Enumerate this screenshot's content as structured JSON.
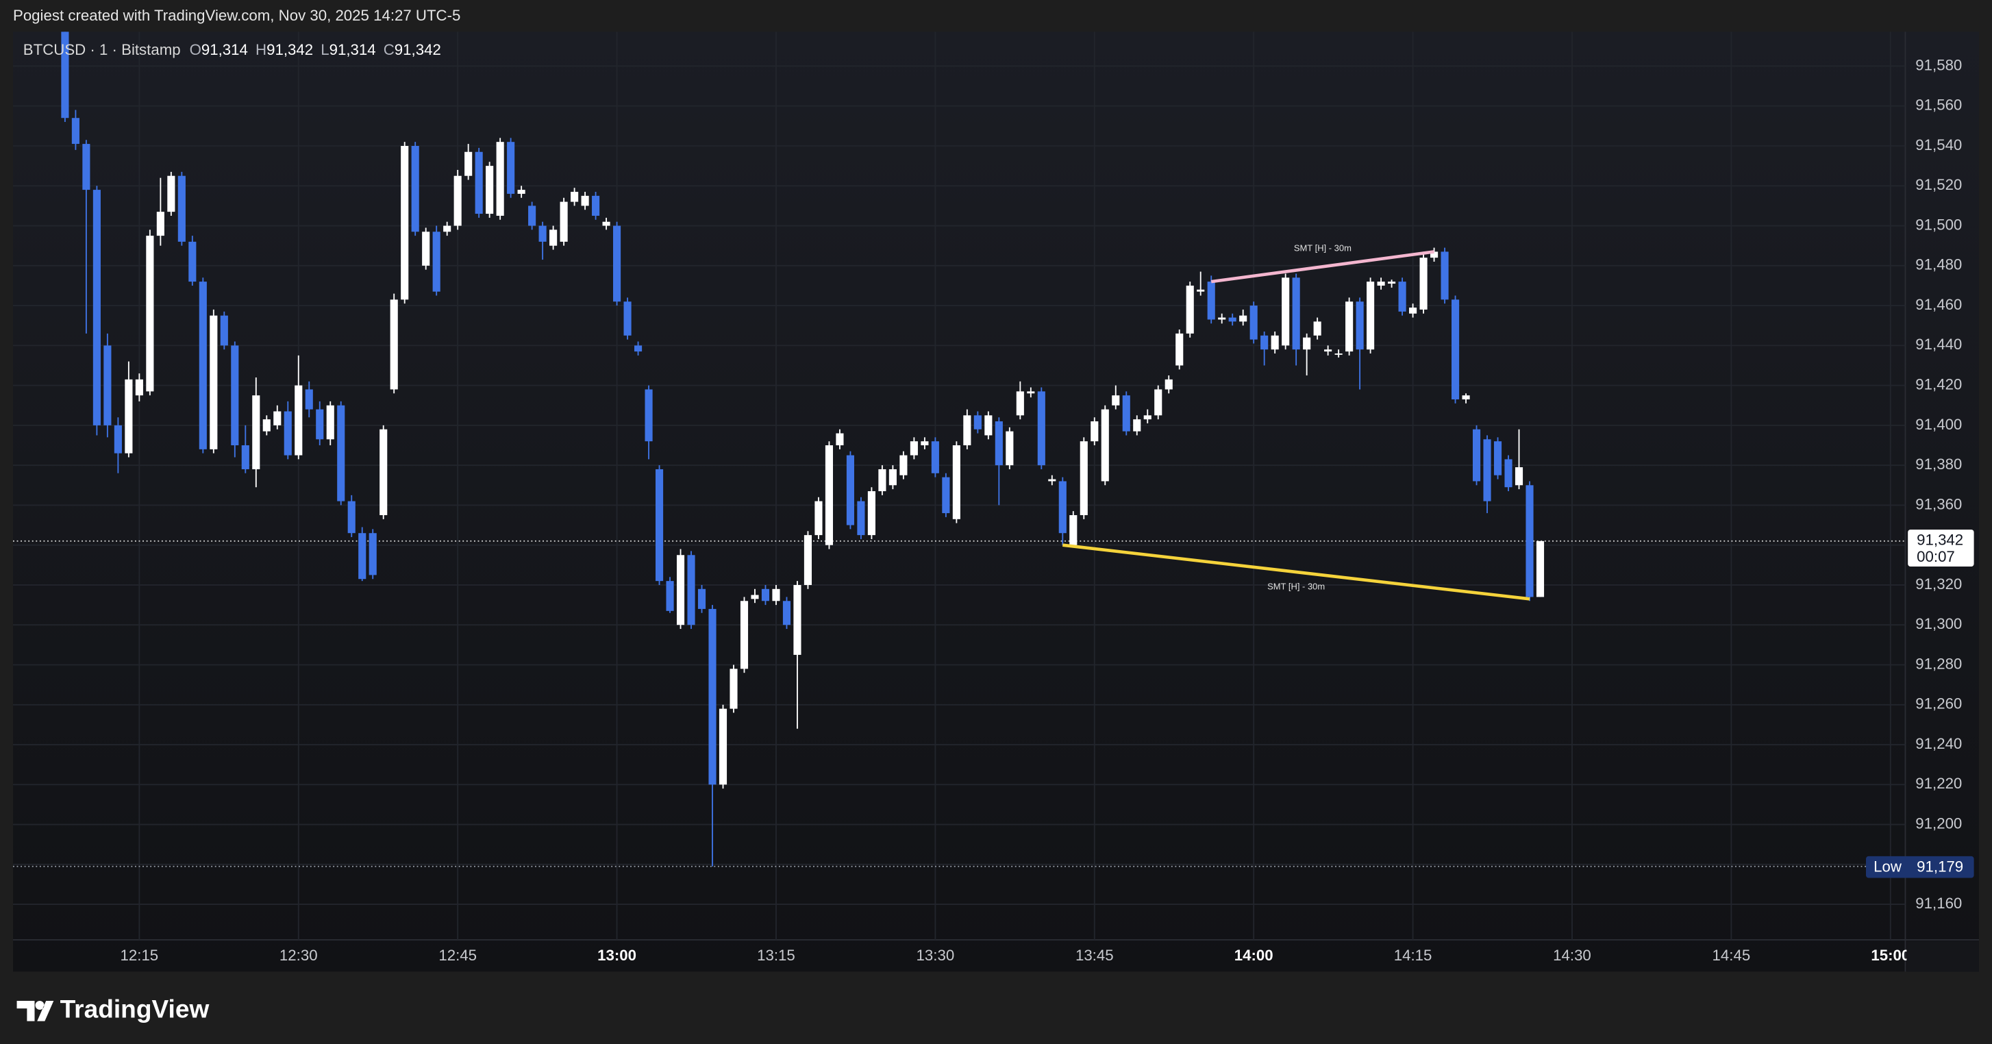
{
  "header": {
    "created": "Pogiest created with TradingView.com, Nov 30, 2025 14:27 UTC-5"
  },
  "footer": {
    "brand": "TradingView"
  },
  "chart_data": {
    "type": "candlestick",
    "symbol": "BTCUSD · 1 · Bitstamp",
    "legend_ohlc": [
      {
        "key": "O",
        "value": 91314,
        "label": "91,314"
      },
      {
        "key": "H",
        "value": 91342,
        "label": "91,342"
      },
      {
        "key": "L",
        "value": 91314,
        "label": "91,314"
      },
      {
        "key": "C",
        "value": 91342,
        "label": "91,342"
      }
    ],
    "up_color": "#ffffff",
    "down_color": "#3f74e6",
    "grid": true,
    "xlim": [
      723.1,
      901.4
    ],
    "ylim": [
      91142.2,
      91597.2
    ],
    "xticks": [
      {
        "value": 735,
        "label": "12:15"
      },
      {
        "value": 750,
        "label": "12:30"
      },
      {
        "value": 765,
        "label": "12:45"
      },
      {
        "value": 780,
        "label": "13:00",
        "bold": true
      },
      {
        "value": 795,
        "label": "13:15"
      },
      {
        "value": 810,
        "label": "13:30"
      },
      {
        "value": 825,
        "label": "13:45"
      },
      {
        "value": 840,
        "label": "14:00",
        "bold": true
      },
      {
        "value": 855,
        "label": "14:15"
      },
      {
        "value": 870,
        "label": "14:30"
      },
      {
        "value": 885,
        "label": "14:45"
      },
      {
        "value": 900,
        "label": "15:00",
        "bold": true
      }
    ],
    "yticks": [
      {
        "value": 91160,
        "label": "91,160"
      },
      {
        "value": 91180,
        "label": "91,180"
      },
      {
        "value": 91200,
        "label": "91,200"
      },
      {
        "value": 91220,
        "label": "91,220"
      },
      {
        "value": 91240,
        "label": "91,240"
      },
      {
        "value": 91260,
        "label": "91,260"
      },
      {
        "value": 91280,
        "label": "91,280"
      },
      {
        "value": 91300,
        "label": "91,300"
      },
      {
        "value": 91320,
        "label": "91,320"
      },
      {
        "value": 91340,
        "label": "91,340"
      },
      {
        "value": 91360,
        "label": "91,360"
      },
      {
        "value": 91380,
        "label": "91,380"
      },
      {
        "value": 91400,
        "label": "91,400"
      },
      {
        "value": 91420,
        "label": "91,420"
      },
      {
        "value": 91440,
        "label": "91,440"
      },
      {
        "value": 91460,
        "label": "91,460"
      },
      {
        "value": 91480,
        "label": "91,480"
      },
      {
        "value": 91500,
        "label": "91,500"
      },
      {
        "value": 91520,
        "label": "91,520"
      },
      {
        "value": 91540,
        "label": "91,540"
      },
      {
        "value": 91560,
        "label": "91,560"
      },
      {
        "value": 91580,
        "label": "91,580"
      }
    ],
    "last_price": {
      "value": 91342,
      "label": "91,342",
      "countdown": "00:07"
    },
    "low_marker": {
      "text": "Low",
      "value": 91179,
      "label": "91,179"
    },
    "annotations": [
      {
        "text": "SMT [H] - 30m",
        "color": "#f4b6cf",
        "from": [
          836,
          91472
        ],
        "to": [
          857,
          91487
        ],
        "label_side": "above"
      },
      {
        "text": "SMT [H] - 30m",
        "color": "#f5d33b",
        "from": [
          822,
          91340
        ],
        "to": [
          866,
          91313
        ],
        "label_side": "below"
      }
    ],
    "x": [
      728,
      729,
      730,
      731,
      732,
      733,
      734,
      735,
      736,
      737,
      738,
      739,
      740,
      741,
      742,
      743,
      744,
      745,
      746,
      747,
      748,
      749,
      750,
      751,
      752,
      753,
      754,
      755,
      756,
      757,
      758,
      759,
      760,
      761,
      762,
      763,
      764,
      765,
      766,
      767,
      768,
      769,
      770,
      771,
      772,
      773,
      774,
      775,
      776,
      777,
      778,
      779,
      780,
      781,
      782,
      783,
      784,
      785,
      786,
      787,
      788,
      789,
      790,
      791,
      792,
      793,
      794,
      795,
      796,
      797,
      798,
      799,
      800,
      801,
      802,
      803,
      804,
      805,
      806,
      807,
      808,
      809,
      810,
      811,
      812,
      813,
      814,
      815,
      816,
      817,
      818,
      819,
      820,
      821,
      822,
      823,
      824,
      825,
      826,
      827,
      828,
      829,
      830,
      831,
      832,
      833,
      834,
      835,
      836,
      837,
      838,
      839,
      840,
      841,
      842,
      843,
      844,
      845,
      846,
      847,
      848,
      849,
      850,
      851,
      852,
      853,
      854,
      855,
      856,
      857,
      858,
      859,
      860,
      861,
      862,
      863,
      864,
      865,
      866,
      867
    ],
    "candles": [
      [
        91600,
        91612,
        91552,
        91554
      ],
      [
        91554,
        91558,
        91538,
        91541
      ],
      [
        91541,
        91543,
        91446,
        91518
      ],
      [
        91518,
        91520,
        91395,
        91400
      ],
      [
        91440,
        91446,
        91394,
        91400
      ],
      [
        91400,
        91404,
        91376,
        91386
      ],
      [
        91386,
        91432,
        91384,
        91423
      ],
      [
        91415,
        91426,
        91412,
        91423
      ],
      [
        91417,
        91498,
        91415,
        91495
      ],
      [
        91495,
        91524,
        91490,
        91507
      ],
      [
        91507,
        91527,
        91505,
        91525
      ],
      [
        91525,
        91527,
        91490,
        91492
      ],
      [
        91492,
        91495,
        91470,
        91472
      ],
      [
        91472,
        91474,
        91386,
        91388
      ],
      [
        91388,
        91458,
        91386,
        91455
      ],
      [
        91455,
        91457,
        91438,
        91440
      ],
      [
        91440,
        91442,
        91384,
        91390
      ],
      [
        91390,
        91400,
        91376,
        91378
      ],
      [
        91378,
        91424,
        91369,
        91415
      ],
      [
        91397,
        91405,
        91395,
        91403
      ],
      [
        91400,
        91410,
        91398,
        91407
      ],
      [
        91407,
        91412,
        91383,
        91385
      ],
      [
        91385,
        91435,
        91383,
        91420
      ],
      [
        91418,
        91422,
        91404,
        91408
      ],
      [
        91408,
        91412,
        91390,
        91393
      ],
      [
        91393,
        91412,
        91390,
        91410
      ],
      [
        91410,
        91412,
        91360,
        91362
      ],
      [
        91362,
        91365,
        91344,
        91346
      ],
      [
        91346,
        91349,
        91322,
        91323
      ],
      [
        91346,
        91348,
        91323,
        91325
      ],
      [
        91355,
        91400,
        91353,
        91398
      ],
      [
        91418,
        91466,
        91416,
        91463
      ],
      [
        91463,
        91542,
        91461,
        91540
      ],
      [
        91540,
        91542,
        91495,
        91497
      ],
      [
        91480,
        91499,
        91478,
        91497
      ],
      [
        91497,
        91500,
        91465,
        91467
      ],
      [
        91497,
        91502,
        91495,
        91500
      ],
      [
        91500,
        91528,
        91498,
        91525
      ],
      [
        91525,
        91541,
        91523,
        91537
      ],
      [
        91537,
        91539,
        91504,
        91506
      ],
      [
        91506,
        91532,
        91504,
        91530
      ],
      [
        91505,
        91544,
        91503,
        91542
      ],
      [
        91542,
        91544,
        91514,
        91516
      ],
      [
        91516,
        91520,
        91514,
        91518
      ],
      [
        91510,
        91512,
        91498,
        91500
      ],
      [
        91500,
        91502,
        91483,
        91492
      ],
      [
        91490,
        91500,
        91488,
        91498
      ],
      [
        91492,
        91514,
        91490,
        91512
      ],
      [
        91512,
        91519,
        91510,
        91517
      ],
      [
        91510,
        91517,
        91508,
        91515
      ],
      [
        91515,
        91517,
        91503,
        91505
      ],
      [
        91500,
        91504,
        91498,
        91502
      ],
      [
        91500,
        91502,
        91460,
        91462
      ],
      [
        91462,
        91464,
        91443,
        91445
      ],
      [
        91440,
        91442,
        91435,
        91437
      ],
      [
        91418,
        91420,
        91383,
        91392
      ],
      [
        91378,
        91380,
        91320,
        91322
      ],
      [
        91322,
        91324,
        91306,
        91307
      ],
      [
        91300,
        91338,
        91298,
        91335
      ],
      [
        91335,
        91337,
        91298,
        91300
      ],
      [
        91318,
        91320,
        91306,
        91308
      ],
      [
        91308,
        91310,
        91179,
        91220
      ],
      [
        91220,
        91260,
        91218,
        91258
      ],
      [
        91258,
        91280,
        91256,
        91278
      ],
      [
        91278,
        91314,
        91276,
        91312
      ],
      [
        91313,
        91318,
        91311,
        91315
      ],
      [
        91318,
        91320,
        91310,
        91312
      ],
      [
        91312,
        91320,
        91310,
        91318
      ],
      [
        91312,
        91314,
        91298,
        91300
      ],
      [
        91285,
        91322,
        91248,
        91320
      ],
      [
        91320,
        91347,
        91318,
        91345
      ],
      [
        91345,
        91364,
        91343,
        91362
      ],
      [
        91340,
        91392,
        91338,
        91390
      ],
      [
        91390,
        91398,
        91388,
        91396
      ],
      [
        91385,
        91387,
        91348,
        91350
      ],
      [
        91362,
        91364,
        91343,
        91345
      ],
      [
        91345,
        91369,
        91343,
        91367
      ],
      [
        91367,
        91380,
        91365,
        91378
      ],
      [
        91370,
        91380,
        91368,
        91378
      ],
      [
        91375,
        91387,
        91373,
        91385
      ],
      [
        91385,
        91394,
        91383,
        91392
      ],
      [
        91390,
        91394,
        91388,
        91392
      ],
      [
        91392,
        91394,
        91374,
        91376
      ],
      [
        91374,
        91376,
        91354,
        91356
      ],
      [
        91353,
        91392,
        91351,
        91390
      ],
      [
        91390,
        91408,
        91388,
        91405
      ],
      [
        91405,
        91407,
        91396,
        91398
      ],
      [
        91395,
        91407,
        91393,
        91405
      ],
      [
        91402,
        91404,
        91360,
        91380
      ],
      [
        91380,
        91399,
        91378,
        91397
      ],
      [
        91405,
        91422,
        91403,
        91417
      ],
      [
        91416,
        91419,
        91414,
        91417
      ],
      [
        91417,
        91419,
        91378,
        91380
      ],
      [
        91372,
        91375,
        91370,
        91373
      ],
      [
        91372,
        91374,
        91340,
        91346
      ],
      [
        91340,
        91357,
        91339,
        91355
      ],
      [
        91355,
        91394,
        91353,
        91392
      ],
      [
        91392,
        91404,
        91390,
        91402
      ],
      [
        91372,
        91410,
        91370,
        91408
      ],
      [
        91410,
        91420,
        91408,
        91415
      ],
      [
        91415,
        91417,
        91395,
        91397
      ],
      [
        91397,
        91405,
        91395,
        91403
      ],
      [
        91403,
        91408,
        91401,
        91405
      ],
      [
        91405,
        91420,
        91403,
        91418
      ],
      [
        91418,
        91425,
        91416,
        91423
      ],
      [
        91430,
        91448,
        91428,
        91446
      ],
      [
        91446,
        91472,
        91444,
        91470
      ],
      [
        91467,
        91477,
        91465,
        91468
      ],
      [
        91472,
        91475,
        91451,
        91453
      ],
      [
        91453,
        91456,
        91451,
        91454
      ],
      [
        91454,
        91456,
        91450,
        91452
      ],
      [
        91452,
        91458,
        91450,
        91455
      ],
      [
        91460,
        91462,
        91441,
        91443
      ],
      [
        91445,
        91447,
        91430,
        91438
      ],
      [
        91438,
        91447,
        91436,
        91445
      ],
      [
        91440,
        91476,
        91438,
        91474
      ],
      [
        91474,
        91476,
        91430,
        91438
      ],
      [
        91438,
        91446,
        91425,
        91444
      ],
      [
        91445,
        91454,
        91443,
        91452
      ],
      [
        91437,
        91440,
        91435,
        91438
      ],
      [
        91436,
        91438,
        91434,
        91436
      ],
      [
        91437,
        91464,
        91435,
        91462
      ],
      [
        91462,
        91464,
        91418,
        91438
      ],
      [
        91438,
        91474,
        91436,
        91472
      ],
      [
        91470,
        91474,
        91468,
        91472
      ],
      [
        91471,
        91473,
        91469,
        91472
      ],
      [
        91472,
        91474,
        91455,
        91457
      ],
      [
        91456,
        91461,
        91454,
        91459
      ],
      [
        91458,
        91487,
        91456,
        91484
      ],
      [
        91484,
        91489,
        91482,
        91487
      ],
      [
        91487,
        91489,
        91461,
        91463
      ],
      [
        91463,
        91465,
        91411,
        91413
      ],
      [
        91413,
        91416,
        91411,
        91415
      ],
      [
        91398,
        91400,
        91370,
        91372
      ],
      [
        91393,
        91395,
        91356,
        91362
      ],
      [
        91392,
        91394,
        91373,
        91375
      ],
      [
        91383,
        91385,
        91367,
        91369
      ],
      [
        91370,
        91398,
        91368,
        91379
      ],
      [
        91370,
        91372,
        91312,
        91314
      ],
      [
        91314,
        91342,
        91314,
        91342
      ]
    ]
  }
}
